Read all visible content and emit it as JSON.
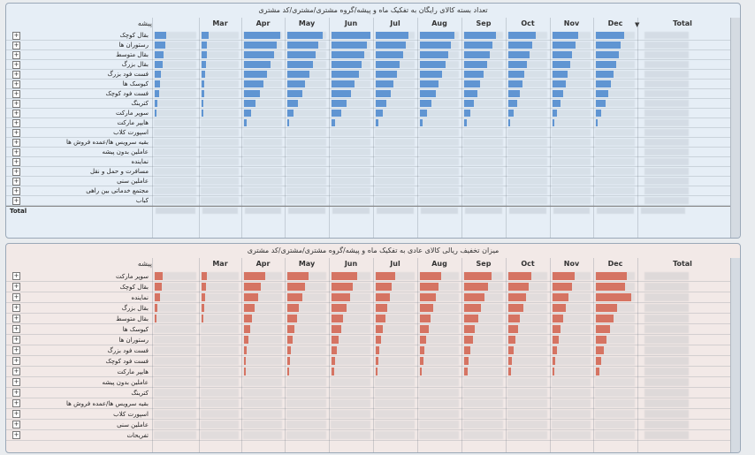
{
  "panel1": {
    "title": "تعداد بسته کالای رایگان به تفکیک ماه و پیشه/گروه مشتری/مشتری/کد مشتری",
    "row_header": "پیشه",
    "columns": [
      "",
      "Mar",
      "Apr",
      "May",
      "Jun",
      "Jul",
      "Aug",
      "Sep",
      "Oct",
      "Nov",
      "Dec",
      "Total"
    ],
    "sort_icon": "▼",
    "bar_color": "#3b82d6",
    "rows": [
      {
        "label": "بقال کوچک",
        "bars": [
          0.28,
          0.18,
          0.95,
          0.9,
          1.0,
          0.85,
          0.88,
          0.82,
          0.7,
          0.68,
          0.72
        ]
      },
      {
        "label": "رستوران ها",
        "bars": [
          0.25,
          0.15,
          0.85,
          0.8,
          0.92,
          0.78,
          0.8,
          0.72,
          0.62,
          0.6,
          0.64
        ]
      },
      {
        "label": "بقال متوسط",
        "bars": [
          0.22,
          0.14,
          0.78,
          0.72,
          0.85,
          0.7,
          0.72,
          0.66,
          0.55,
          0.52,
          0.58
        ]
      },
      {
        "label": "بقال بزرگ",
        "bars": [
          0.2,
          0.12,
          0.7,
          0.65,
          0.78,
          0.62,
          0.65,
          0.58,
          0.48,
          0.46,
          0.52
        ]
      },
      {
        "label": "فست فود بزرگ",
        "bars": [
          0.15,
          0.1,
          0.6,
          0.56,
          0.7,
          0.54,
          0.57,
          0.5,
          0.42,
          0.4,
          0.45
        ]
      },
      {
        "label": "کیوسک ها",
        "bars": [
          0.12,
          0.08,
          0.5,
          0.46,
          0.6,
          0.46,
          0.48,
          0.42,
          0.36,
          0.34,
          0.38
        ]
      },
      {
        "label": "فست فود کوچک",
        "bars": [
          0.1,
          0.06,
          0.42,
          0.38,
          0.5,
          0.38,
          0.4,
          0.35,
          0.3,
          0.28,
          0.32
        ]
      },
      {
        "label": "کترینگ",
        "bars": [
          0.07,
          0.04,
          0.3,
          0.28,
          0.38,
          0.28,
          0.3,
          0.26,
          0.22,
          0.2,
          0.24
        ]
      },
      {
        "label": "سوپر مارکت",
        "bars": [
          0.04,
          0.02,
          0.18,
          0.16,
          0.24,
          0.18,
          0.19,
          0.16,
          0.14,
          0.12,
          0.14
        ]
      },
      {
        "label": "هایپر مارکت",
        "bars": [
          0,
          0,
          0.06,
          0.05,
          0.1,
          0.06,
          0.07,
          0.06,
          0.05,
          0.04,
          0.05
        ]
      },
      {
        "label": "اسپورت کلاب",
        "bars": []
      },
      {
        "label": "بقیه سرویس ها/عمده فروش ها",
        "bars": []
      },
      {
        "label": "عاملین بدون پیشه",
        "bars": []
      },
      {
        "label": "نماینده",
        "bars": []
      },
      {
        "label": "مسافرت و حمل و نقل",
        "bars": []
      },
      {
        "label": "عاملین سنی",
        "bars": []
      },
      {
        "label": "مجتمع خدماتی بین راهی",
        "bars": []
      },
      {
        "label": "کباب",
        "bars": []
      }
    ],
    "total_label": "Total"
  },
  "panel2": {
    "title": "میزان تخفیف ریالی کالای عادی به تفکیک ماه و پیشه/گروه مشتری/مشتری/کد مشتری",
    "row_header": "پیشه",
    "columns": [
      "",
      "Mar",
      "Apr",
      "May",
      "Jun",
      "Jul",
      "Aug",
      "Sep",
      "Oct",
      "Nov",
      "Dec",
      "Total"
    ],
    "bar_color": "#e0553a",
    "rows": [
      {
        "label": "سوپر مارکت",
        "bars": [
          0.2,
          0.15,
          0.55,
          0.55,
          0.65,
          0.5,
          0.55,
          0.7,
          0.6,
          0.58,
          0.8
        ]
      },
      {
        "label": "بقال کوچک",
        "bars": [
          0.17,
          0.12,
          0.45,
          0.45,
          0.55,
          0.42,
          0.48,
          0.62,
          0.52,
          0.5,
          0.75
        ]
      },
      {
        "label": "نماینده",
        "bars": [
          0.12,
          0.1,
          0.38,
          0.38,
          0.48,
          0.36,
          0.42,
          0.52,
          0.45,
          0.42,
          0.9
        ]
      },
      {
        "label": "بقال بزرگ",
        "bars": [
          0.06,
          0.06,
          0.28,
          0.3,
          0.38,
          0.3,
          0.34,
          0.44,
          0.38,
          0.34,
          0.55
        ]
      },
      {
        "label": "بقال متوسط",
        "bars": [
          0.04,
          0.04,
          0.22,
          0.24,
          0.3,
          0.24,
          0.28,
          0.36,
          0.3,
          0.28,
          0.45
        ]
      },
      {
        "label": "کیوسک ها",
        "bars": [
          0,
          0,
          0.16,
          0.18,
          0.24,
          0.18,
          0.22,
          0.28,
          0.24,
          0.22,
          0.36
        ]
      },
      {
        "label": "رستوران ها",
        "bars": [
          0,
          0,
          0.12,
          0.14,
          0.18,
          0.14,
          0.16,
          0.22,
          0.18,
          0.16,
          0.28
        ]
      },
      {
        "label": "فست فود بزرگ",
        "bars": [
          0,
          0,
          0.08,
          0.1,
          0.14,
          0.1,
          0.12,
          0.16,
          0.14,
          0.12,
          0.2
        ]
      },
      {
        "label": "فست فود کوچک",
        "bars": [
          0,
          0,
          0.05,
          0.06,
          0.1,
          0.07,
          0.08,
          0.12,
          0.1,
          0.08,
          0.14
        ]
      },
      {
        "label": "هایپر مارکت",
        "bars": [
          0,
          0,
          0.03,
          0.04,
          0.06,
          0.04,
          0.05,
          0.08,
          0.06,
          0.05,
          0.09
        ]
      },
      {
        "label": "عاملین بدون پیشه",
        "bars": []
      },
      {
        "label": "کترینگ",
        "bars": []
      },
      {
        "label": "بقیه سرویس ها/عمده فروش ها",
        "bars": []
      },
      {
        "label": "اسپورت کلاب",
        "bars": []
      },
      {
        "label": "عاملین سنی",
        "bars": []
      },
      {
        "label": "تفریحات",
        "bars": []
      }
    ]
  }
}
